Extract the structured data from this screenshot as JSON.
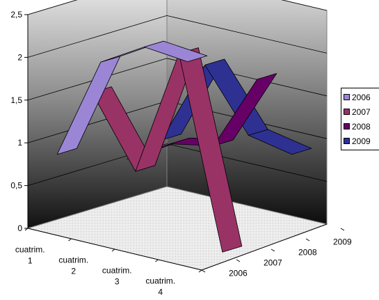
{
  "chart_data": {
    "type": "line",
    "style": "3d-ribbon",
    "categories": [
      "cuatrim. 1",
      "cuatrim. 2",
      "cuatrim. 3",
      "cuatrim. 4"
    ],
    "category_labels": [
      [
        "cuatrim.",
        "1"
      ],
      [
        "cuatrim.",
        "2"
      ],
      [
        "cuatrim.",
        "3"
      ],
      [
        "cuatrim.",
        "4"
      ]
    ],
    "series": [
      {
        "name": "2006",
        "color": "#9B86D6",
        "values": [
          0.9,
          2.1,
          2.4,
          2.35
        ]
      },
      {
        "name": "2007",
        "color": "#993366",
        "values": [
          1.5,
          0.7,
          2.2,
          0.0
        ]
      },
      {
        "name": "2008",
        "color": "#660066",
        "values": [
          0.6,
          0.9,
          1.0,
          1.9
        ]
      },
      {
        "name": "2009",
        "color": "#2E3192",
        "values": [
          0.7,
          1.7,
          1.0,
          0.9
        ]
      }
    ],
    "depth_labels": [
      "2006",
      "2007",
      "2008",
      "2009"
    ],
    "y_ticks": [
      "0",
      "0,5",
      "1",
      "1,5",
      "2",
      "2,5"
    ],
    "ylim": [
      0,
      2.5
    ],
    "legend": {
      "placement": "right"
    },
    "grid": true
  }
}
